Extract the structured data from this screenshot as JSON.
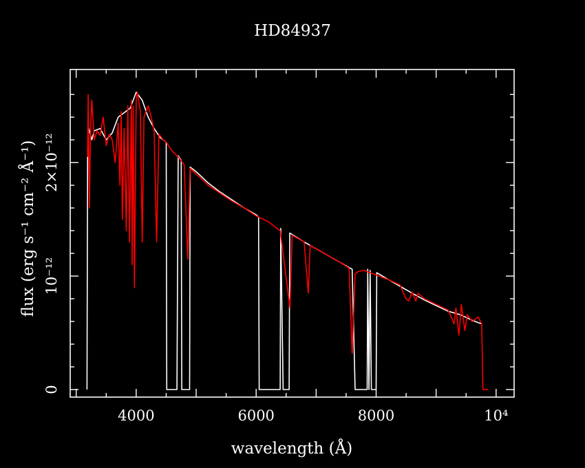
{
  "chart_data": {
    "type": "line",
    "title": "HD84937",
    "xlabel": "wavelength (Å)",
    "ylabel": "flux (erg s⁻¹ cm⁻² Å⁻¹)",
    "xlim": [
      2900,
      10300
    ],
    "ylim": [
      -6.66e-14,
      2.82e-12
    ],
    "x_ticks": [
      {
        "value": 4000,
        "label": "4000"
      },
      {
        "value": 6000,
        "label": "6000"
      },
      {
        "value": 8000,
        "label": "8000"
      },
      {
        "value": 10000,
        "label": "10⁴"
      }
    ],
    "y_ticks": [
      {
        "value": 0,
        "label": "0"
      },
      {
        "value": 1e-12,
        "label": "10⁻¹²"
      },
      {
        "value": 2e-12,
        "label": "2×10⁻¹²"
      }
    ],
    "grid": false,
    "series": [
      {
        "color": "#ffffff",
        "points": [
          [
            3180,
            0
          ],
          [
            3190,
            2.08e-12
          ],
          [
            3210,
            2.3e-12
          ],
          [
            3260,
            2.2e-12
          ],
          [
            3300,
            2.28e-12
          ],
          [
            3400,
            2.3e-12
          ],
          [
            3500,
            2.2e-12
          ],
          [
            3600,
            2.26e-12
          ],
          [
            3700,
            2.4e-12
          ],
          [
            3800,
            2.44e-12
          ],
          [
            3900,
            2.48e-12
          ],
          [
            4000,
            2.62e-12
          ],
          [
            4100,
            2.55e-12
          ],
          [
            4200,
            2.4e-12
          ],
          [
            4300,
            2.3e-12
          ],
          [
            4400,
            2.22e-12
          ],
          [
            4500,
            2.18e-12
          ],
          [
            4510,
            0
          ],
          [
            4680,
            0
          ],
          [
            4700,
            2.06e-12
          ],
          [
            4750,
            2.02e-12
          ],
          [
            4760,
            0
          ],
          [
            4890,
            0
          ],
          [
            4900,
            1.96e-12
          ],
          [
            5000,
            1.92e-12
          ],
          [
            5200,
            1.82e-12
          ],
          [
            5400,
            1.74e-12
          ],
          [
            5600,
            1.67e-12
          ],
          [
            5800,
            1.6e-12
          ],
          [
            6000,
            1.54e-12
          ],
          [
            6040,
            1.52e-12
          ],
          [
            6050,
            0
          ],
          [
            6400,
            0
          ],
          [
            6410,
            1.42e-12
          ],
          [
            6450,
            0
          ],
          [
            6550,
            0
          ],
          [
            6560,
            1.38e-12
          ],
          [
            6800,
            1.3e-12
          ],
          [
            7000,
            1.24e-12
          ],
          [
            7200,
            1.18e-12
          ],
          [
            7400,
            1.12e-12
          ],
          [
            7600,
            1.06e-12
          ],
          [
            7650,
            0
          ],
          [
            7850,
            0
          ],
          [
            7860,
            1.06e-12
          ],
          [
            7880,
            0
          ],
          [
            7900,
            1.05e-12
          ],
          [
            7920,
            0
          ],
          [
            8000,
            0
          ],
          [
            8010,
            1.03e-12
          ],
          [
            8200,
            9.7e-13
          ],
          [
            8400,
            9.1e-13
          ],
          [
            8600,
            8.5e-13
          ],
          [
            8800,
            7.9e-13
          ],
          [
            9000,
            7.4e-13
          ],
          [
            9200,
            6.9e-13
          ],
          [
            9400,
            6.6e-13
          ],
          [
            9600,
            6.1e-13
          ],
          [
            9750,
            5.8e-13
          ]
        ]
      },
      {
        "color": "#ff0000",
        "points": [
          [
            3190,
            2.05e-12
          ],
          [
            3200,
            2.6e-12
          ],
          [
            3220,
            1.6e-12
          ],
          [
            3240,
            2.3e-12
          ],
          [
            3260,
            2.55e-12
          ],
          [
            3300,
            2.2e-12
          ],
          [
            3350,
            2.28e-12
          ],
          [
            3400,
            2.24e-12
          ],
          [
            3450,
            2.4e-12
          ],
          [
            3500,
            2.15e-12
          ],
          [
            3550,
            2.25e-12
          ],
          [
            3600,
            2.2e-12
          ],
          [
            3650,
            2e-12
          ],
          [
            3700,
            2.35e-12
          ],
          [
            3730,
            1.8e-12
          ],
          [
            3750,
            2.45e-12
          ],
          [
            3770,
            1.5e-12
          ],
          [
            3800,
            2.3e-12
          ],
          [
            3835,
            1.4e-12
          ],
          [
            3860,
            2.5e-12
          ],
          [
            3889,
            1.3e-12
          ],
          [
            3920,
            2.55e-12
          ],
          [
            3933,
            1.1e-12
          ],
          [
            3950,
            2.5e-12
          ],
          [
            3970,
            9e-13
          ],
          [
            4000,
            2.55e-12
          ],
          [
            4020,
            2.62e-12
          ],
          [
            4040,
            2.55e-12
          ],
          [
            4070,
            2.45e-12
          ],
          [
            4101,
            1.3e-12
          ],
          [
            4130,
            2.4e-12
          ],
          [
            4200,
            2.5e-12
          ],
          [
            4250,
            2.4e-12
          ],
          [
            4300,
            2.28e-12
          ],
          [
            4340,
            1.3e-12
          ],
          [
            4380,
            2.25e-12
          ],
          [
            4450,
            2.2e-12
          ],
          [
            4500,
            2.18e-12
          ],
          [
            4600,
            2.1e-12
          ],
          [
            4700,
            2.05e-12
          ],
          [
            4800,
            1.98e-12
          ],
          [
            4861,
            1.15e-12
          ],
          [
            4900,
            1.95e-12
          ],
          [
            5000,
            1.9e-12
          ],
          [
            5200,
            1.8e-12
          ],
          [
            5400,
            1.73e-12
          ],
          [
            5600,
            1.66e-12
          ],
          [
            5800,
            1.6e-12
          ],
          [
            6000,
            1.53e-12
          ],
          [
            6200,
            1.48e-12
          ],
          [
            6400,
            1.4e-12
          ],
          [
            6563,
            7.2e-13
          ],
          [
            6600,
            1.36e-12
          ],
          [
            6800,
            1.3e-12
          ],
          [
            6870,
            8.5e-13
          ],
          [
            6900,
            1.27e-12
          ],
          [
            7000,
            1.24e-12
          ],
          [
            7200,
            1.18e-12
          ],
          [
            7400,
            1.12e-12
          ],
          [
            7550,
            1.07e-12
          ],
          [
            7600,
            3.2e-13
          ],
          [
            7650,
            1.02e-12
          ],
          [
            7700,
            1.04e-12
          ],
          [
            7800,
            1.05e-12
          ],
          [
            7900,
            1.03e-12
          ],
          [
            8000,
            1.01e-12
          ],
          [
            8200,
            9.7e-13
          ],
          [
            8400,
            9.2e-13
          ],
          [
            8498,
            8e-13
          ],
          [
            8542,
            7.8e-13
          ],
          [
            8600,
            8.6e-13
          ],
          [
            8662,
            7.8e-13
          ],
          [
            8700,
            8.5e-13
          ],
          [
            8800,
            8e-13
          ],
          [
            9000,
            7.5e-13
          ],
          [
            9200,
            7e-13
          ],
          [
            9300,
            5.8e-13
          ],
          [
            9330,
            7.2e-13
          ],
          [
            9380,
            4.8e-13
          ],
          [
            9420,
            7.5e-13
          ],
          [
            9480,
            5.2e-13
          ],
          [
            9520,
            6.6e-13
          ],
          [
            9600,
            6e-13
          ],
          [
            9700,
            6.4e-13
          ],
          [
            9760,
            5.8e-13
          ],
          [
            9780,
            0
          ],
          [
            9870,
            0
          ]
        ]
      }
    ]
  }
}
